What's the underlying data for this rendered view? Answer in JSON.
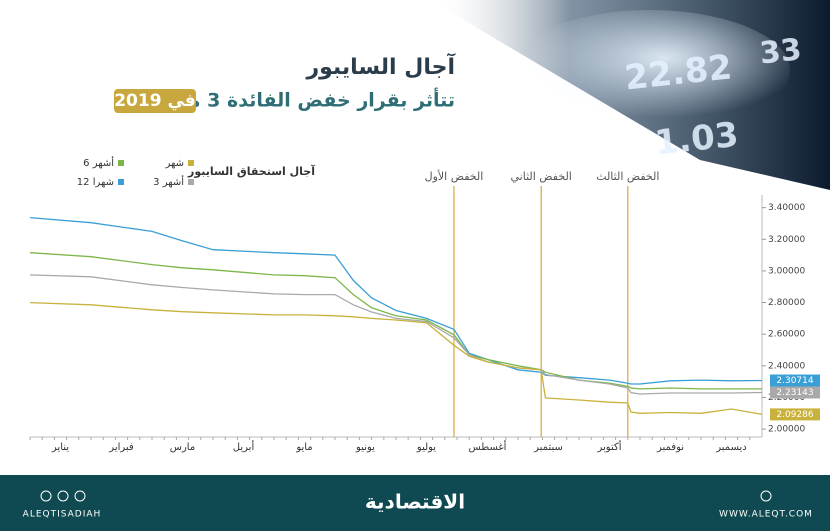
{
  "chart_data": {
    "type": "line",
    "title": "آجال السايبور",
    "subtitle": "تتأثر بقرار خفض الفائدة 3 مرات",
    "subtitle_badge": "في 2019",
    "legend_title": "آجال استحقاق السايبور",
    "decor_numbers": [
      "22.82",
      "33",
      "1.03"
    ],
    "categories": [
      "يناير",
      "فبراير",
      "مارس",
      "أبريل",
      "مايو",
      "يونيو",
      "يوليو",
      "أغسطس",
      "سبتمبر",
      "أكتوبر",
      "نوفمبر",
      "ديسمبر"
    ],
    "x": [
      0,
      1,
      2,
      2.5,
      3,
      4,
      4.5,
      5,
      5.3,
      5.6,
      6,
      6.5,
      6.95,
      7.2,
      7.5,
      8,
      8.38,
      8.45,
      9,
      9.5,
      9.8,
      9.85,
      10,
      10.5,
      11,
      11.5,
      12
    ],
    "xlim": [
      0,
      12
    ],
    "series": [
      {
        "name": "12 شهرا",
        "color": "#3a9fd6",
        "end_label": true,
        "values": [
          3.337,
          3.305,
          3.25,
          3.19,
          3.134,
          3.115,
          3.108,
          3.1,
          2.94,
          2.83,
          2.75,
          2.7,
          2.63,
          2.48,
          2.44,
          2.375,
          2.36,
          2.34,
          2.325,
          2.31,
          2.29,
          2.285,
          2.285,
          2.305,
          2.31,
          2.305,
          2.30714
        ]
      },
      {
        "name": "6 أشهر",
        "color": "#7cb649",
        "end_label": false,
        "values": [
          3.115,
          3.09,
          3.04,
          3.02,
          3.007,
          2.975,
          2.97,
          2.957,
          2.85,
          2.767,
          2.716,
          2.69,
          2.596,
          2.47,
          2.44,
          2.4,
          2.375,
          2.36,
          2.31,
          2.29,
          2.27,
          2.26,
          2.254,
          2.26,
          2.254,
          2.254,
          2.254
        ]
      },
      {
        "name": "3 أشهر",
        "color": "#a9a9a9",
        "end_label": true,
        "values": [
          2.975,
          2.963,
          2.912,
          2.895,
          2.88,
          2.855,
          2.85,
          2.85,
          2.786,
          2.74,
          2.7,
          2.68,
          2.577,
          2.47,
          2.425,
          2.387,
          2.374,
          2.345,
          2.31,
          2.285,
          2.26,
          2.23,
          2.222,
          2.228,
          2.228,
          2.228,
          2.23143
        ]
      },
      {
        "name": "شهر",
        "color": "#c8b23c",
        "end_label": true,
        "values": [
          2.8,
          2.786,
          2.754,
          2.742,
          2.735,
          2.722,
          2.722,
          2.716,
          2.71,
          2.7,
          2.69,
          2.672,
          2.53,
          2.46,
          2.425,
          2.387,
          2.374,
          2.197,
          2.184,
          2.17,
          2.165,
          2.108,
          2.1,
          2.105,
          2.1,
          2.127,
          2.09286
        ]
      }
    ],
    "ylim": [
      1.95,
      3.48
    ],
    "yticks": [
      {
        "value": 2.0,
        "label": "2.00000"
      },
      {
        "value": 2.2,
        "label": "2.20000"
      },
      {
        "value": 2.4,
        "label": "2.40000"
      },
      {
        "value": 2.6,
        "label": "2.60000"
      },
      {
        "value": 2.8,
        "label": "2.80000"
      },
      {
        "value": 3.0,
        "label": "3.00000"
      },
      {
        "value": 3.2,
        "label": "3.20000"
      },
      {
        "value": 3.4,
        "label": "3.40000"
      }
    ],
    "annotations": [
      {
        "text": "الخفض الأول",
        "x": 6.95
      },
      {
        "text": "الخفض الثاني",
        "x": 8.38
      },
      {
        "text": "الخفض الثالث",
        "x": 9.8
      }
    ],
    "annotation_color": "#d9a63a",
    "footer": {
      "left": "ALEQTISADIAH",
      "center": "الاقتصادية",
      "right": "WWW.ALEQT.COM"
    }
  }
}
